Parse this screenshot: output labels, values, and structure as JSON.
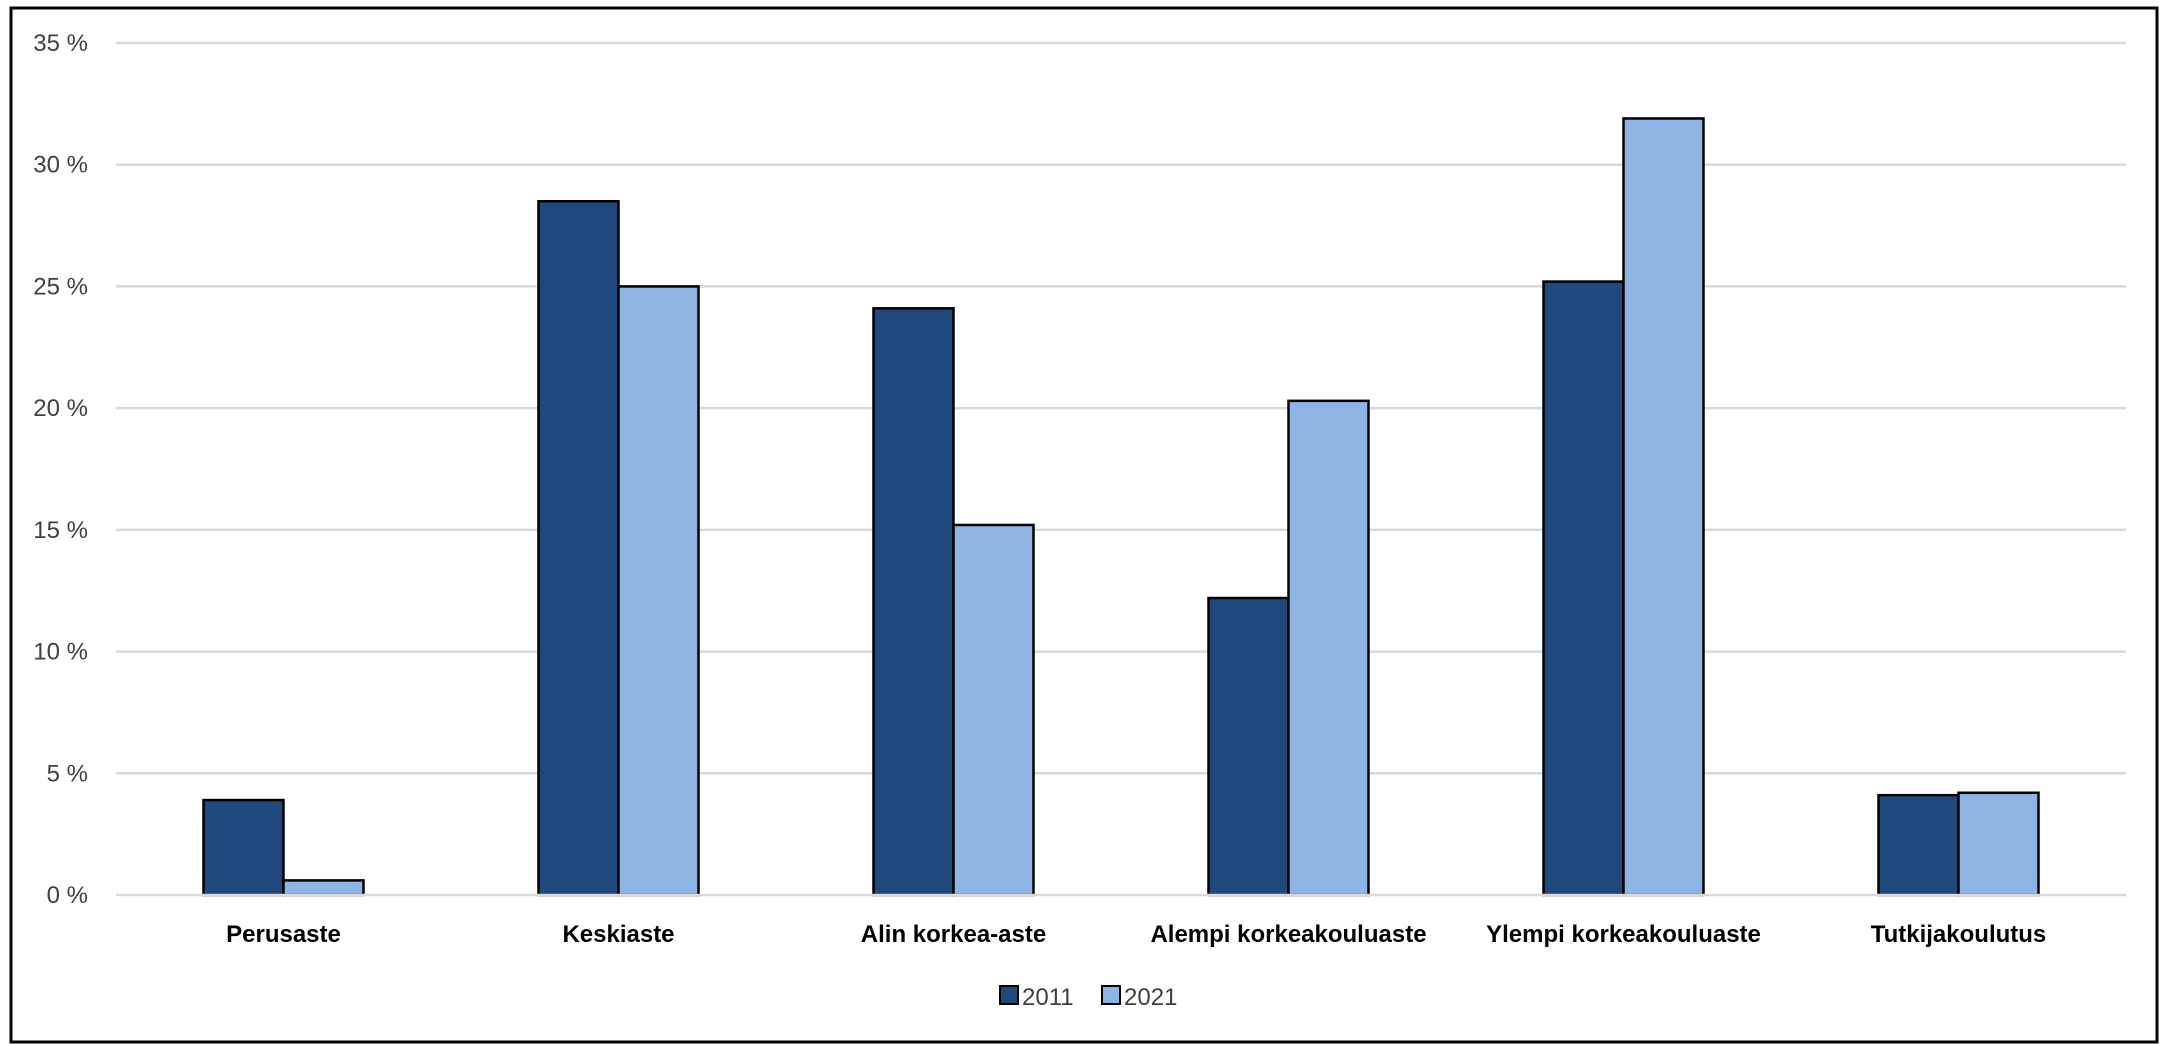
{
  "chart_data": {
    "type": "bar",
    "categories": [
      "Perusaste",
      "Keskiaste",
      "Alin korkea-aste",
      "Alempi korkeakouluaste",
      "Ylempi korkeakouluaste",
      "Tutkijakoulutus"
    ],
    "series": [
      {
        "name": "2011",
        "values": [
          3.9,
          28.5,
          24.1,
          12.2,
          25.2,
          4.1
        ],
        "color": "#1f497d"
      },
      {
        "name": "2021",
        "values": [
          0.6,
          25.0,
          15.2,
          20.3,
          31.9,
          4.2
        ],
        "color": "#8eb4e3"
      }
    ],
    "yticks": [
      "0 %",
      "5 %",
      "10 %",
      "15 %",
      "20 %",
      "25 %",
      "30 %",
      "35 %"
    ],
    "ylim": [
      0,
      35
    ],
    "grid": true,
    "legend_position": "bottom",
    "title": "",
    "xlabel": "",
    "ylabel": ""
  }
}
